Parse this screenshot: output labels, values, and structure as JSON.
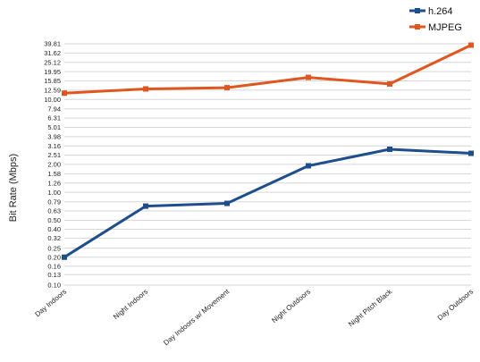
{
  "chart_data": {
    "type": "line",
    "categories": [
      "Day Indoors",
      "Night Indoors",
      "Day Indoors w/ Movement",
      "Night Outdoors",
      "Night Pitch Black",
      "Day Outdoors"
    ],
    "y_ticks": [
      "0.10",
      "0.13",
      "0.16",
      "0.20",
      "0.25",
      "0.32",
      "0.40",
      "0.50",
      "0.63",
      "0.79",
      "1.00",
      "1.26",
      "1.58",
      "2.00",
      "2.51",
      "3.16",
      "3.98",
      "5.01",
      "6.31",
      "7.94",
      "10.00",
      "12.59",
      "15.85",
      "19.95",
      "25.12",
      "31.62",
      "39.81"
    ],
    "ylabel": "Bit Rate (Mbps)",
    "y_scale": "log",
    "ylim": [
      0.1,
      39.81
    ],
    "grid": true,
    "legend_position": "top-right",
    "series": [
      {
        "name": "h.264",
        "color": "#1f4e8c",
        "values": [
          0.2,
          0.71,
          0.76,
          1.93,
          2.91,
          2.63
        ]
      },
      {
        "name": "MJPEG",
        "color": "#e0561f",
        "values": [
          11.7,
          13.0,
          13.4,
          17.3,
          14.7,
          38.5
        ]
      }
    ]
  }
}
